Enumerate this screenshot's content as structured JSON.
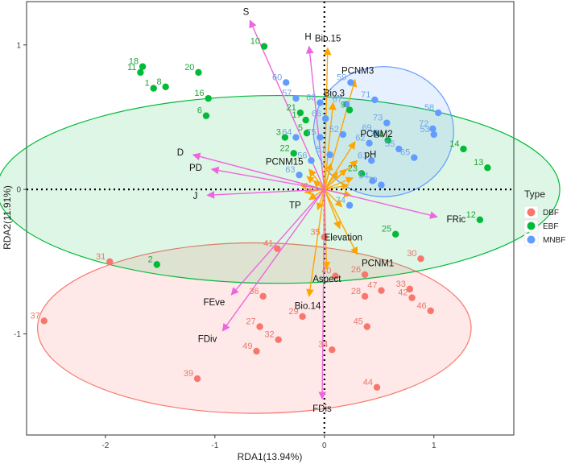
{
  "chart_data": {
    "type": "scatter",
    "title": "",
    "xlabel": "RDA1(13.94%)",
    "ylabel": "RDA2(11.91%)",
    "xlim": [
      -2.72,
      1.73
    ],
    "ylim": [
      -1.7,
      1.3
    ],
    "xticks": [
      -2,
      -1,
      0,
      1
    ],
    "yticks": [
      -1,
      0,
      1
    ],
    "xtick_labels": [
      "-2",
      "-1",
      "0",
      "1"
    ],
    "ytick_labels": [
      "-1",
      "0",
      "1"
    ],
    "grid": false,
    "legend": {
      "title": "Type",
      "position": "right",
      "entries": [
        {
          "label": "DBF",
          "color": "#F8766D"
        },
        {
          "label": "EBF",
          "color": "#00BA38"
        },
        {
          "label": "MNBF",
          "color": "#619CFF"
        }
      ]
    },
    "colors": {
      "DBF": "#F8766D",
      "EBF": "#00BA38",
      "MNBF": "#619CFF",
      "DBF_label": "#E8776C",
      "EBF_label": "#22A437",
      "MNBF_label": "#6FA5EC",
      "env_vector": "#FFA500",
      "trait_vector": "#EE66DD"
    },
    "ellipses": [
      {
        "group": "DBF",
        "cx": -0.64,
        "cy": -0.96,
        "rx": 1.98,
        "ry": 0.59
      },
      {
        "group": "EBF",
        "cx": -0.42,
        "cy": 0.0,
        "rx": 2.57,
        "ry": 0.65
      },
      {
        "group": "MNBF",
        "cx": 0.54,
        "cy": 0.4,
        "rx": 0.64,
        "ry": 0.45
      }
    ],
    "series": [
      {
        "name": "DBF",
        "points": [
          {
            "id": "30",
            "x": 0.88,
            "y": -0.48
          },
          {
            "id": "31",
            "x": -1.96,
            "y": -0.5
          },
          {
            "id": "35",
            "x": 0.0,
            "y": -0.33
          },
          {
            "id": "41",
            "x": -0.43,
            "y": -0.41
          },
          {
            "id": "40",
            "x": 0.1,
            "y": -0.6
          },
          {
            "id": "26",
            "x": 0.37,
            "y": -0.59
          },
          {
            "id": "33",
            "x": 0.78,
            "y": -0.69
          },
          {
            "id": "47",
            "x": 0.52,
            "y": -0.7
          },
          {
            "id": "28",
            "x": 0.37,
            "y": -0.74
          },
          {
            "id": "42",
            "x": 0.8,
            "y": -0.75
          },
          {
            "id": "36",
            "x": -0.56,
            "y": -0.74
          },
          {
            "id": "46",
            "x": 0.97,
            "y": -0.84
          },
          {
            "id": "27",
            "x": -0.59,
            "y": -0.95
          },
          {
            "id": "29",
            "x": -0.2,
            "y": -0.88
          },
          {
            "id": "45",
            "x": 0.39,
            "y": -0.95
          },
          {
            "id": "37",
            "x": -2.56,
            "y": -0.91
          },
          {
            "id": "32",
            "x": -0.42,
            "y": -1.04
          },
          {
            "id": "49",
            "x": -0.62,
            "y": -1.12
          },
          {
            "id": "34",
            "x": 0.07,
            "y": -1.11
          },
          {
            "id": "39",
            "x": -1.16,
            "y": -1.31
          },
          {
            "id": "44",
            "x": 0.48,
            "y": -1.37
          }
        ]
      },
      {
        "name": "EBF",
        "points": [
          {
            "id": "10",
            "x": -0.55,
            "y": 0.99
          },
          {
            "id": "18",
            "x": -1.66,
            "y": 0.85
          },
          {
            "id": "11",
            "x": -1.68,
            "y": 0.81
          },
          {
            "id": "1",
            "x": -1.56,
            "y": 0.7
          },
          {
            "id": "8",
            "x": -1.45,
            "y": 0.71
          },
          {
            "id": "20",
            "x": -1.15,
            "y": 0.81
          },
          {
            "id": "16",
            "x": -1.06,
            "y": 0.63
          },
          {
            "id": "6",
            "x": -1.08,
            "y": 0.51
          },
          {
            "id": "21",
            "x": -0.22,
            "y": 0.53
          },
          {
            "id": "17",
            "x": -0.17,
            "y": 0.48
          },
          {
            "id": "3",
            "x": -0.36,
            "y": 0.36
          },
          {
            "id": "5",
            "x": -0.16,
            "y": 0.39
          },
          {
            "id": "22",
            "x": -0.28,
            "y": 0.25
          },
          {
            "id": "9",
            "x": 0.23,
            "y": 0.55
          },
          {
            "id": "24",
            "x": 0.58,
            "y": 0.34
          },
          {
            "id": "14",
            "x": 1.27,
            "y": 0.28
          },
          {
            "id": "13",
            "x": 1.49,
            "y": 0.15
          },
          {
            "id": "23",
            "x": 0.34,
            "y": 0.11
          },
          {
            "id": "12",
            "x": 1.42,
            "y": -0.21
          },
          {
            "id": "25",
            "x": 0.65,
            "y": -0.31
          },
          {
            "id": "2",
            "x": -1.53,
            "y": -0.52
          }
        ]
      },
      {
        "name": "MNBF",
        "points": [
          {
            "id": "60",
            "x": -0.35,
            "y": 0.74
          },
          {
            "id": "59",
            "x": 0.24,
            "y": 0.74
          },
          {
            "id": "57",
            "x": -0.26,
            "y": 0.63
          },
          {
            "id": "68",
            "x": -0.04,
            "y": 0.6
          },
          {
            "id": "67",
            "x": 0.2,
            "y": 0.59
          },
          {
            "id": "71",
            "x": 0.46,
            "y": 0.62
          },
          {
            "id": "58",
            "x": 1.04,
            "y": 0.53
          },
          {
            "id": "66",
            "x": 0.01,
            "y": 0.49
          },
          {
            "id": "73",
            "x": 0.57,
            "y": 0.46
          },
          {
            "id": "72",
            "x": 0.99,
            "y": 0.42
          },
          {
            "id": "53",
            "x": 1.0,
            "y": 0.38
          },
          {
            "id": "64",
            "x": -0.26,
            "y": 0.36
          },
          {
            "id": "52",
            "x": 0.17,
            "y": 0.38
          },
          {
            "id": "69",
            "x": 0.47,
            "y": 0.39
          },
          {
            "id": "75",
            "x": -0.04,
            "y": 0.36
          },
          {
            "id": "62",
            "x": 0.41,
            "y": 0.32
          },
          {
            "id": "55",
            "x": 0.68,
            "y": 0.28
          },
          {
            "id": "51",
            "x": 0.05,
            "y": 0.24
          },
          {
            "id": "56",
            "x": -0.12,
            "y": 0.2
          },
          {
            "id": "61",
            "x": 0.43,
            "y": 0.2
          },
          {
            "id": "65",
            "x": 0.82,
            "y": 0.22
          },
          {
            "id": "54",
            "x": 0.44,
            "y": 0.06
          },
          {
            "id": "70",
            "x": 0.52,
            "y": 0.03
          },
          {
            "id": "74",
            "x": 0.23,
            "y": -0.11
          },
          {
            "id": "63",
            "x": -0.23,
            "y": 0.1
          }
        ]
      }
    ],
    "env_vectors": [
      {
        "name": "Bio.15",
        "x": 0.03,
        "y": 0.98
      },
      {
        "name": "Bio.3",
        "x": 0.08,
        "y": 0.6
      },
      {
        "name": "PCNM3",
        "x": 0.28,
        "y": 0.76
      },
      {
        "name": "PCNM2",
        "x": 0.28,
        "y": 0.33
      },
      {
        "name": "pH",
        "x": 0.3,
        "y": 0.2
      },
      {
        "name": "PCNM15",
        "x": -0.14,
        "y": 0.14
      },
      {
        "name": "TP",
        "x": -0.14,
        "y": -0.07
      },
      {
        "name": "Elevation",
        "x": 0.14,
        "y": -0.27
      },
      {
        "name": "PCNM1",
        "x": 0.3,
        "y": -0.45
      },
      {
        "name": "Aspect",
        "x": 0.02,
        "y": -0.55
      },
      {
        "name": "Bio.14",
        "x": -0.14,
        "y": -0.74
      }
    ],
    "trait_vectors": [
      {
        "name": "S",
        "x": -0.68,
        "y": 1.17
      },
      {
        "name": "H",
        "x": -0.14,
        "y": 0.99
      },
      {
        "name": "D",
        "x": -1.2,
        "y": 0.24
      },
      {
        "name": "PD",
        "x": -1.03,
        "y": 0.14
      },
      {
        "name": "J",
        "x": -1.07,
        "y": -0.04
      },
      {
        "name": "FRic",
        "x": 1.03,
        "y": -0.19
      },
      {
        "name": "FEve",
        "x": -0.85,
        "y": -0.73
      },
      {
        "name": "FDiv",
        "x": -0.93,
        "y": -0.98
      },
      {
        "name": "FDis",
        "x": -0.02,
        "y": -1.45
      }
    ],
    "extra_env_arrows": [
      {
        "x": 0.26,
        "y": 0.08
      },
      {
        "x": 0.22,
        "y": 0.03
      },
      {
        "x": 0.24,
        "y": -0.04
      },
      {
        "x": -0.22,
        "y": 0.03
      },
      {
        "x": -0.18,
        "y": -0.02
      },
      {
        "x": -0.1,
        "y": 0.06
      },
      {
        "x": 0.12,
        "y": 0.12
      },
      {
        "x": 0.16,
        "y": -0.12
      },
      {
        "x": -0.06,
        "y": -0.14
      },
      {
        "x": 0.06,
        "y": 0.18
      },
      {
        "x": -0.16,
        "y": 0.09
      },
      {
        "x": 0.2,
        "y": 0.14
      }
    ]
  }
}
